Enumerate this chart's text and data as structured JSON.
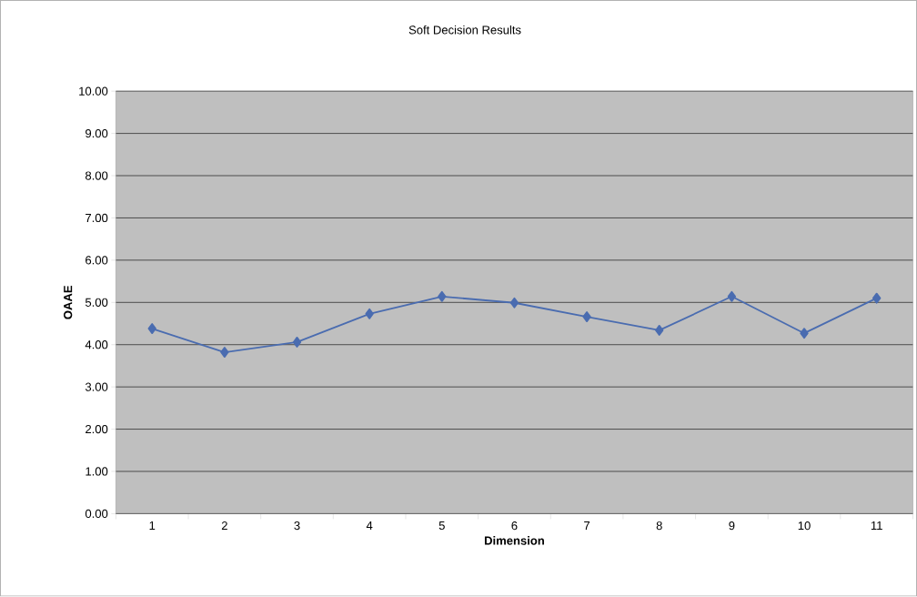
{
  "chart_data": {
    "type": "line",
    "title": "Soft Decision Results",
    "xlabel": "Dimension",
    "ylabel": "OAAE",
    "categories": [
      "1",
      "2",
      "3",
      "4",
      "5",
      "6",
      "7",
      "8",
      "9",
      "10",
      "11"
    ],
    "series": [
      {
        "color": "#4a6cb0",
        "values": [
          4.38,
          3.82,
          4.06,
          4.73,
          5.14,
          4.99,
          4.66,
          4.34,
          5.14,
          4.27,
          5.1
        ]
      }
    ],
    "ylim": [
      0,
      10
    ],
    "yticks": [
      {
        "value": 0,
        "label": "0.00"
      },
      {
        "value": 1,
        "label": "1.00"
      },
      {
        "value": 2,
        "label": "2.00"
      },
      {
        "value": 3,
        "label": "3.00"
      },
      {
        "value": 4,
        "label": "4.00"
      },
      {
        "value": 5,
        "label": "5.00"
      },
      {
        "value": 6,
        "label": "6.00"
      },
      {
        "value": 7,
        "label": "7.00"
      },
      {
        "value": 8,
        "label": "8.00"
      },
      {
        "value": 9,
        "label": "9.00"
      },
      {
        "value": 10,
        "label": "10.00"
      }
    ],
    "grid": "y",
    "marker": "diamond",
    "line_style": "solid"
  }
}
